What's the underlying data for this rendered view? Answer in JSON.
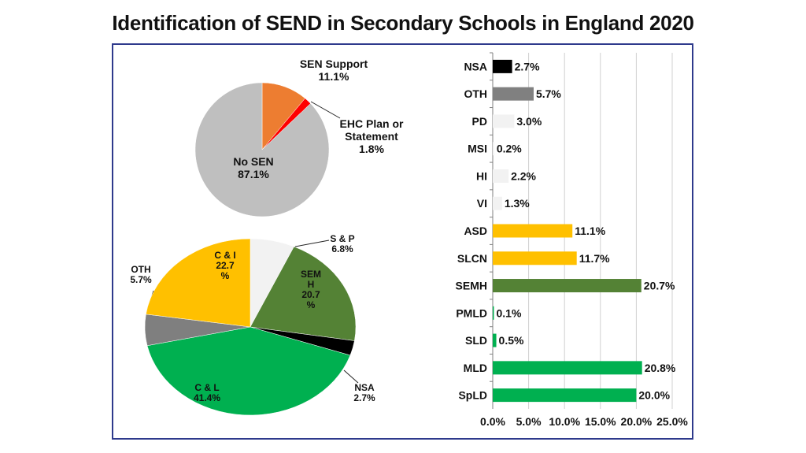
{
  "title": "Identification of SEND in Secondary Schools in England 2020",
  "chart_data": [
    {
      "type": "pie",
      "slices": [
        {
          "lines": [
            "SEN Support",
            "11.1%"
          ],
          "value": 11.1,
          "color": "#ed7d31"
        },
        {
          "lines": [
            "EHC Plan or",
            "Statement",
            "1.8%"
          ],
          "value": 1.8,
          "color": "#ff0000"
        },
        {
          "lines": [
            "No SEN",
            "87.1%"
          ],
          "value": 87.1,
          "color": "#bfbfbf"
        }
      ]
    },
    {
      "type": "pie",
      "slices": [
        {
          "lines": [
            "S & P",
            "6.8%"
          ],
          "value": 6.8,
          "color": "#f2f2f2"
        },
        {
          "lines": [
            "SEM",
            "H",
            "20.7",
            "%"
          ],
          "value": 20.7,
          "color": "#548235"
        },
        {
          "lines": [
            "NSA",
            "2.7%"
          ],
          "value": 2.7,
          "color": "#000000"
        },
        {
          "lines": [
            "C & L",
            "41.4%"
          ],
          "value": 41.4,
          "color": "#00b050"
        },
        {
          "lines": [
            "OTH",
            "5.7%"
          ],
          "value": 5.7,
          "color": "#7f7f7f"
        },
        {
          "lines": [
            "C & I",
            "22.7",
            "%"
          ],
          "value": 22.7,
          "color": "#ffc000"
        }
      ]
    },
    {
      "type": "bar",
      "orientation": "horizontal",
      "categories": [
        "NSA",
        "OTH",
        "PD",
        "MSI",
        "HI",
        "VI",
        "ASD",
        "SLCN",
        "SEMH",
        "PMLD",
        "SLD",
        "MLD",
        "SpLD"
      ],
      "values": [
        2.7,
        5.7,
        3.0,
        0.2,
        2.2,
        1.3,
        11.1,
        11.7,
        20.7,
        0.1,
        0.5,
        20.8,
        20.0
      ],
      "value_labels": [
        "2.7%",
        "5.7%",
        "3.0%",
        "0.2%",
        "2.2%",
        "1.3%",
        "11.1%",
        "11.7%",
        "20.7%",
        "0.1%",
        "0.5%",
        "20.8%",
        "20.0%"
      ],
      "colors": [
        "#000000",
        "#808080",
        "#f2f2f2",
        "#f2f2f2",
        "#f2f2f2",
        "#f2f2f2",
        "#ffc000",
        "#ffc000",
        "#548235",
        "#00b050",
        "#00b050",
        "#00b050",
        "#00b050"
      ],
      "xlim": [
        0,
        25
      ],
      "xticks": [
        "0.0%",
        "5.0%",
        "10.0%",
        "15.0%",
        "20.0%",
        "25.0%"
      ],
      "grid": true
    }
  ]
}
